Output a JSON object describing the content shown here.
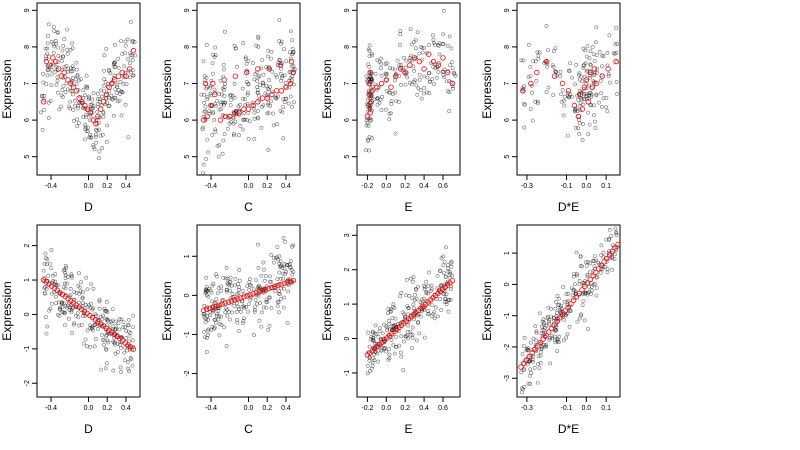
{
  "figure": {
    "colors": {
      "observed": "#000000",
      "fitted": "#ff0000",
      "background": "#ffffff"
    }
  },
  "chart_data": [
    {
      "type": "scatter",
      "row": 1,
      "col": 1,
      "xlabel": "D",
      "ylabel": "Expression",
      "xticks": [
        -0.4,
        0,
        0.2,
        0.4
      ],
      "xtick_labels": [
        "-0.4",
        "0.0",
        "0.2",
        "0.4"
      ],
      "yticks": [
        5,
        6,
        7,
        8,
        9
      ],
      "ytick_labels": [
        "5",
        "6",
        "7",
        "8",
        "9"
      ],
      "xlim": [
        -0.55,
        0.55
      ],
      "ylim": [
        4.5,
        9.2
      ],
      "fit_points": [
        [
          -0.48,
          6.5
        ],
        [
          -0.45,
          7.6
        ],
        [
          -0.42,
          7.5
        ],
        [
          -0.38,
          7.7
        ],
        [
          -0.35,
          7.6
        ],
        [
          -0.32,
          7.4
        ],
        [
          -0.29,
          7.2
        ],
        [
          -0.26,
          7.3
        ],
        [
          -0.22,
          7.1
        ],
        [
          -0.19,
          7.0
        ],
        [
          -0.16,
          6.9
        ],
        [
          -0.13,
          6.8
        ],
        [
          -0.1,
          6.6
        ],
        [
          -0.07,
          6.5
        ],
        [
          -0.04,
          6.4
        ],
        [
          -0.01,
          6.3
        ],
        [
          0.02,
          6.2
        ],
        [
          0.05,
          6.0
        ],
        [
          0.08,
          5.9
        ],
        [
          0.1,
          6.1
        ],
        [
          0.13,
          6.3
        ],
        [
          0.16,
          6.5
        ],
        [
          0.19,
          6.7
        ],
        [
          0.22,
          6.9
        ],
        [
          0.25,
          7.0
        ],
        [
          0.28,
          7.1
        ],
        [
          0.32,
          7.2
        ],
        [
          0.36,
          7.3
        ],
        [
          0.4,
          7.2
        ],
        [
          0.44,
          7.4
        ],
        [
          0.48,
          7.9
        ]
      ]
    },
    {
      "type": "scatter",
      "row": 1,
      "col": 2,
      "xlabel": "C",
      "ylabel": "Expression",
      "xticks": [
        -0.4,
        0,
        0.2,
        0.4
      ],
      "xtick_labels": [
        "-0.4",
        "0.0",
        "0.2",
        "0.4"
      ],
      "yticks": [
        5,
        6,
        7,
        8,
        9
      ],
      "ytick_labels": [
        "5",
        "6",
        "7",
        "8",
        "9"
      ],
      "xlim": [
        -0.55,
        0.55
      ],
      "ylim": [
        4.5,
        9.2
      ],
      "fit_points": [
        [
          -0.48,
          6.0
        ],
        [
          -0.44,
          6.1
        ],
        [
          -0.4,
          6.4
        ],
        [
          -0.36,
          6.7
        ],
        [
          -0.3,
          6.0
        ],
        [
          -0.25,
          6.1
        ],
        [
          -0.2,
          6.1
        ],
        [
          -0.15,
          6.2
        ],
        [
          -0.1,
          6.2
        ],
        [
          -0.05,
          6.3
        ],
        [
          0.0,
          6.3
        ],
        [
          0.05,
          6.4
        ],
        [
          0.1,
          6.5
        ],
        [
          0.15,
          6.6
        ],
        [
          0.2,
          6.6
        ],
        [
          0.25,
          6.7
        ],
        [
          0.3,
          6.8
        ],
        [
          0.35,
          6.8
        ],
        [
          0.4,
          6.9
        ],
        [
          0.45,
          7.0
        ],
        [
          0.48,
          7.3
        ],
        [
          -0.46,
          7.0
        ],
        [
          -0.38,
          7.0
        ],
        [
          -0.26,
          7.1
        ],
        [
          -0.14,
          7.2
        ],
        [
          -0.02,
          7.3
        ],
        [
          0.1,
          7.4
        ],
        [
          0.22,
          7.4
        ],
        [
          0.34,
          7.5
        ],
        [
          0.46,
          7.6
        ]
      ]
    },
    {
      "type": "scatter",
      "row": 1,
      "col": 3,
      "xlabel": "E",
      "ylabel": "Expression",
      "xticks": [
        -0.2,
        0,
        0.2,
        0.4,
        0.6
      ],
      "xtick_labels": [
        "-0.2",
        "0.0",
        "0.2",
        "0.4",
        "0.6"
      ],
      "yticks": [
        5,
        6,
        7,
        8,
        9
      ],
      "ytick_labels": [
        "5",
        "6",
        "7",
        "8",
        "9"
      ],
      "xlim": [
        -0.31,
        0.78
      ],
      "ylim": [
        4.5,
        9.2
      ],
      "fit_points": [
        [
          -0.2,
          6.1
        ],
        [
          -0.19,
          6.4
        ],
        [
          -0.18,
          6.7
        ],
        [
          -0.18,
          7.0
        ],
        [
          -0.17,
          6.2
        ],
        [
          -0.17,
          7.3
        ],
        [
          -0.16,
          6.5
        ],
        [
          -0.15,
          6.8
        ],
        [
          -0.1,
          6.9
        ],
        [
          -0.05,
          7.0
        ],
        [
          0.0,
          7.1
        ],
        [
          0.05,
          6.9
        ],
        [
          0.1,
          7.2
        ],
        [
          0.15,
          7.4
        ],
        [
          0.2,
          7.3
        ],
        [
          0.25,
          7.5
        ],
        [
          0.3,
          7.7
        ],
        [
          0.35,
          7.6
        ],
        [
          0.4,
          7.4
        ],
        [
          0.45,
          7.8
        ],
        [
          0.5,
          7.6
        ],
        [
          0.55,
          7.5
        ],
        [
          0.6,
          7.7
        ],
        [
          0.65,
          7.3
        ],
        [
          0.7,
          7.0
        ]
      ]
    },
    {
      "type": "scatter",
      "row": 1,
      "col": 4,
      "xlabel": "D*E",
      "ylabel": "Expression",
      "xticks": [
        -0.3,
        -0.1,
        0,
        0.1
      ],
      "xtick_labels": [
        "-0.3",
        "-0.1",
        "0.0",
        "0.1"
      ],
      "yticks": [
        5,
        6,
        7,
        8,
        9
      ],
      "ytick_labels": [
        "5",
        "6",
        "7",
        "8",
        "9"
      ],
      "xlim": [
        -0.35,
        0.17
      ],
      "ylim": [
        4.5,
        9.2
      ],
      "fit_points": [
        [
          -0.32,
          6.8
        ],
        [
          -0.28,
          7.0
        ],
        [
          -0.25,
          7.3
        ],
        [
          -0.2,
          7.6
        ],
        [
          -0.16,
          7.2
        ],
        [
          -0.12,
          7.0
        ],
        [
          -0.09,
          6.8
        ],
        [
          -0.06,
          6.4
        ],
        [
          -0.04,
          6.1
        ],
        [
          -0.03,
          6.7
        ],
        [
          -0.02,
          6.3
        ],
        [
          -0.01,
          6.9
        ],
        [
          0.0,
          7.1
        ],
        [
          0.01,
          6.5
        ],
        [
          0.02,
          7.3
        ],
        [
          0.03,
          6.9
        ],
        [
          0.04,
          7.4
        ],
        [
          0.05,
          7.0
        ],
        [
          0.08,
          7.2
        ],
        [
          0.11,
          7.4
        ],
        [
          0.15,
          7.6
        ]
      ]
    },
    {
      "type": "scatter",
      "row": 2,
      "col": 1,
      "xlabel": "D",
      "ylabel": "Expression",
      "xticks": [
        -0.4,
        0,
        0.2,
        0.4
      ],
      "xtick_labels": [
        "-0.4",
        "0.0",
        "0.2",
        "0.4"
      ],
      "yticks": [
        -2,
        -1,
        0,
        1,
        2
      ],
      "ytick_labels": [
        "-2",
        "-1",
        "0",
        "1",
        "2"
      ],
      "xlim": [
        -0.55,
        0.55
      ],
      "ylim": [
        -2.4,
        2.6
      ],
      "fit_line": {
        "slope": -2.1,
        "intercept": 0.0,
        "x_from": -0.48,
        "x_to": 0.48,
        "n": 34
      }
    },
    {
      "type": "scatter",
      "row": 2,
      "col": 2,
      "xlabel": "C",
      "ylabel": "Expression",
      "xticks": [
        -0.4,
        0,
        0.2,
        0.4
      ],
      "xtick_labels": [
        "-0.4",
        "0.0",
        "0.2",
        "0.4"
      ],
      "yticks": [
        -2,
        -1,
        0,
        1
      ],
      "ytick_labels": [
        "-2",
        "-1",
        "0",
        "1"
      ],
      "xlim": [
        -0.55,
        0.55
      ],
      "ylim": [
        -2.6,
        1.8
      ],
      "fit_line": {
        "slope": 0.8,
        "intercept": 0.0,
        "x_from": -0.48,
        "x_to": 0.48,
        "n": 30
      }
    },
    {
      "type": "scatter",
      "row": 2,
      "col": 3,
      "xlabel": "E",
      "ylabel": "Expression",
      "xticks": [
        -0.2,
        0,
        0.2,
        0.4,
        0.6
      ],
      "xtick_labels": [
        "-0.2",
        "0.0",
        "0.2",
        "0.4",
        "0.6"
      ],
      "yticks": [
        -1,
        0,
        1,
        2,
        3
      ],
      "ytick_labels": [
        "-1",
        "0",
        "1",
        "2",
        "3"
      ],
      "xlim": [
        -0.31,
        0.78
      ],
      "ylim": [
        -1.7,
        3.3
      ],
      "fit_line": {
        "slope": 2.4,
        "intercept": 0.0,
        "x_from": -0.2,
        "x_to": 0.7,
        "n": 36
      }
    },
    {
      "type": "scatter",
      "row": 2,
      "col": 4,
      "xlabel": "D*E",
      "ylabel": "Expression",
      "xticks": [
        -0.3,
        -0.1,
        0,
        0.1
      ],
      "xtick_labels": [
        "-0.3",
        "-0.1",
        "0.0",
        "0.1"
      ],
      "yticks": [
        -3,
        -2,
        -1,
        0,
        1
      ],
      "ytick_labels": [
        "-3",
        "-2",
        "-1",
        "0",
        "1"
      ],
      "xlim": [
        -0.35,
        0.17
      ],
      "ylim": [
        -3.6,
        1.9
      ],
      "fit_line": {
        "slope": 8.0,
        "intercept": 0.0,
        "x_from": -0.33,
        "x_to": 0.16,
        "n": 36
      }
    }
  ]
}
